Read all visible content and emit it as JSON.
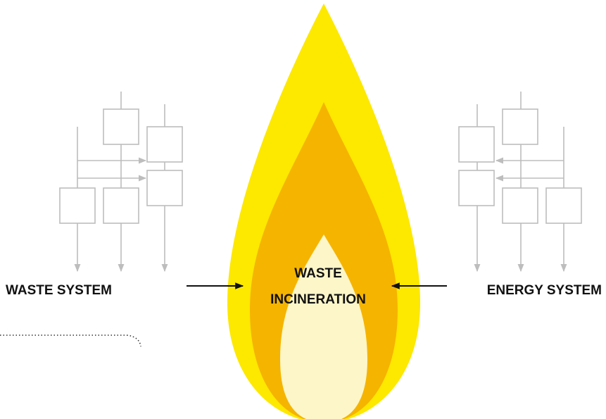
{
  "labels": {
    "waste_system": "WASTE SYSTEM",
    "energy_system": "ENERGY SYSTEM",
    "incineration": [
      "WASTE",
      "INCINERATION"
    ]
  }
}
